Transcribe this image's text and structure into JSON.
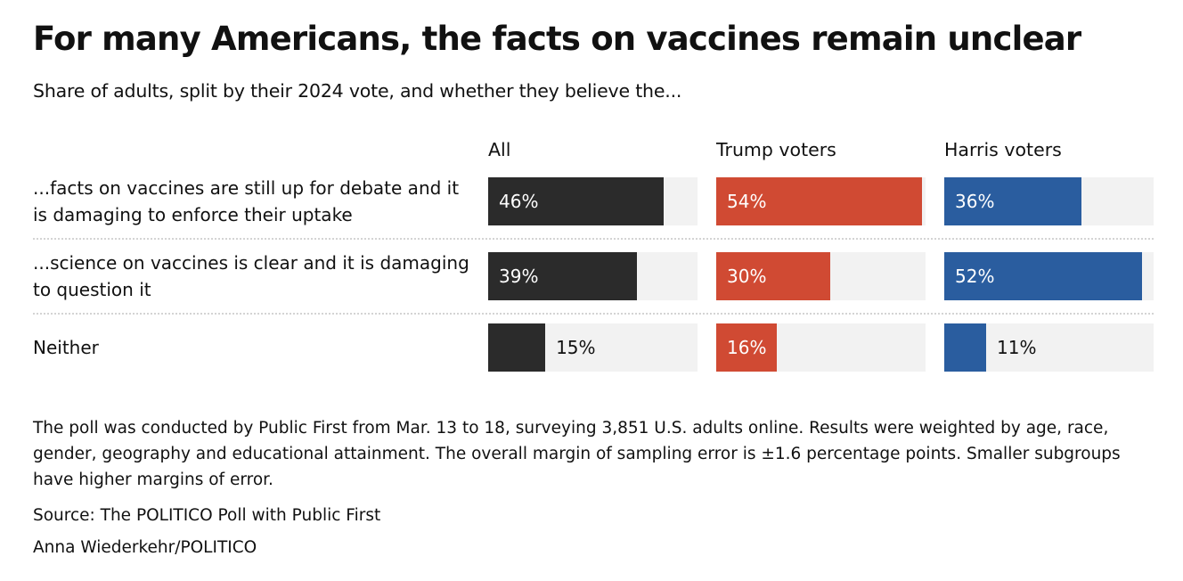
{
  "chart_data": {
    "type": "bar",
    "title": "For many Americans, the facts on vaccines remain unclear",
    "subtitle": "Share of adults, split by their 2024 vote, and whether they believe the...",
    "xlim": [
      0,
      55
    ],
    "categories": [
      "...facts on vaccines are still up for debate and it is damaging to enforce their uptake",
      "...science on vaccines is clear and it is damaging to question it",
      "Neither"
    ],
    "series": [
      {
        "name": "All",
        "color": "#2b2b2b",
        "values": [
          46,
          39,
          15
        ],
        "labels": [
          "46%",
          "39%",
          "15%"
        ]
      },
      {
        "name": "Trump voters",
        "color": "#d04a33",
        "values": [
          54,
          30,
          16
        ],
        "labels": [
          "54%",
          "30%",
          "16%"
        ]
      },
      {
        "name": "Harris voters",
        "color": "#2a5d9f",
        "values": [
          36,
          52,
          11
        ],
        "labels": [
          "36%",
          "52%",
          "11%"
        ]
      }
    ]
  },
  "notes": "The poll was conducted by Public First from Mar. 13 to 18, surveying 3,851 U.S. adults online. Results were weighted by age, race, gender, geography and educational attainment. The overall margin of sampling error is ±1.6 percentage points. Smaller subgroups have higher margins of error.",
  "source": "Source: The POLITICO Poll with Public First",
  "credit": "Anna Wiederkehr/POLITICO"
}
